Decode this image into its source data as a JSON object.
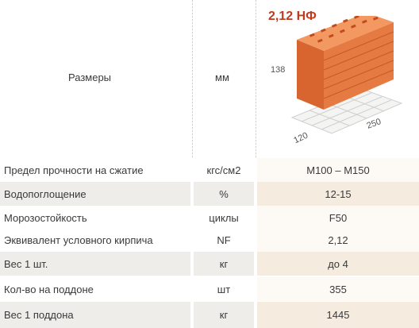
{
  "header": {
    "label": "Размеры",
    "unit": "мм",
    "brick_name": "2,12 НФ",
    "dim_height": "138",
    "dim_width": "120",
    "dim_length": "250"
  },
  "rows": [
    {
      "name": "Предел прочности на сжатие",
      "unit": "кгс/см2",
      "value": "М100 – М150"
    },
    {
      "name": "Водопоглощение",
      "unit": "%",
      "value": "12-15"
    },
    {
      "name": "Морозостойкость",
      "unit": "циклы",
      "value": "F50"
    },
    {
      "name": "Эквивалент условного кирпича",
      "unit": "NF",
      "value": "2,12"
    },
    {
      "name": "Вес 1 шт.",
      "unit": "кг",
      "value": "до 4"
    },
    {
      "name": "Кол-во на поддоне",
      "unit": "шт",
      "value": "355"
    },
    {
      "name": "Вес 1 поддона",
      "unit": "кг",
      "value": "1445"
    }
  ],
  "colors": {
    "brick_front": "#e0703a",
    "brick_top": "#f08a50",
    "brick_side": "#c4552a",
    "accent": "#c23a1c"
  }
}
